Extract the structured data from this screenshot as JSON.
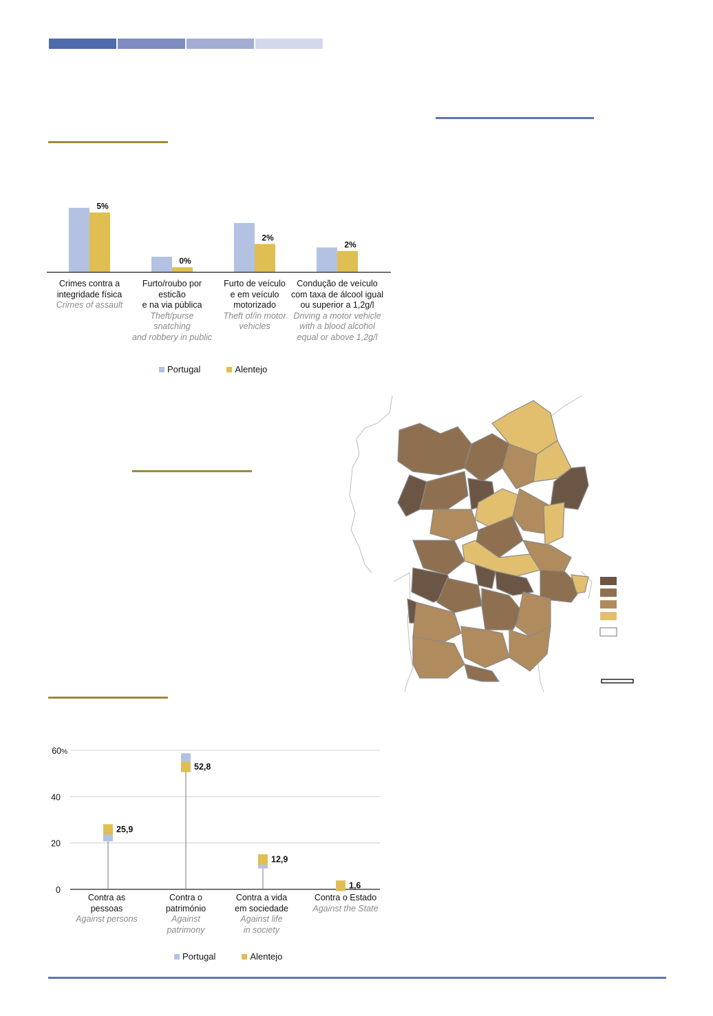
{
  "colors": {
    "portugal": "#b3c2e2",
    "alentejo": "#dfbf52",
    "header_band": [
      "#4f6aab",
      "#7e8dc0",
      "#a3acd2",
      "#d4d8ea"
    ],
    "rule_blue": "#5f74b5",
    "rule_gold": "#9c8b3f",
    "map_classes": [
      "#6b5645",
      "#8e7050",
      "#b08b5e",
      "#e2bf6e",
      "#ffffff"
    ]
  },
  "chart_top": {
    "type": "bar",
    "categories": [
      {
        "pt": [
          "Crimes contra a",
          "integridade física"
        ],
        "en": [
          "Crimes of assault"
        ]
      },
      {
        "pt": [
          "Furto/roubo por",
          "esticão",
          "e na via pública"
        ],
        "en": [
          "Theft/purse",
          "snatching",
          "and robbery in public"
        ]
      },
      {
        "pt": [
          "Furto de veículo",
          "e em veículo",
          "motorizado"
        ],
        "en": [
          "Theft of/in motor",
          "vehicles"
        ]
      },
      {
        "pt": [
          "Condução de veículo",
          "com taxa de álcool igual",
          "ou superior a 1,2g/l"
        ],
        "en": [
          "Driving a motor vehicle",
          "with a blood alcohol",
          "equal or above 1,2g/l"
        ]
      }
    ],
    "series": [
      {
        "name": "Portugal",
        "values": [
          5.5,
          1.3,
          4.2,
          2.1
        ]
      },
      {
        "name": "Alentejo",
        "values": [
          5.1,
          0.4,
          2.4,
          1.8
        ]
      }
    ],
    "data_labels": [
      "5%",
      "0%",
      "2%",
      "2%"
    ],
    "ylim": [
      0,
      6.5
    ],
    "legend": [
      "Portugal",
      "Alentejo"
    ]
  },
  "chart_bottom": {
    "type": "dot",
    "categories": [
      {
        "pt": [
          "Contra as",
          "pessoas"
        ],
        "en": [
          "Against persons"
        ]
      },
      {
        "pt": [
          "Contra o",
          "património"
        ],
        "en": [
          "Against",
          "patrimony"
        ]
      },
      {
        "pt": [
          "Contra a vida",
          "em sociedade"
        ],
        "en": [
          "Against life",
          "in society"
        ]
      },
      {
        "pt": [
          "Contra o Estado"
        ],
        "en": [
          "Against the State"
        ]
      }
    ],
    "series": [
      {
        "name": "Portugal",
        "values": [
          22.5,
          56.5,
          10.8,
          1.0
        ]
      },
      {
        "name": "Alentejo",
        "values": [
          25.9,
          52.8,
          12.9,
          1.6
        ]
      }
    ],
    "data_labels": [
      "25,9",
      "52,8",
      "12,9",
      "1,6"
    ],
    "yticks": [
      "0",
      "20",
      "40",
      "60"
    ],
    "ytick_values": [
      0,
      20,
      40,
      60
    ],
    "ytick_unit": "%",
    "ylim": [
      0,
      60
    ],
    "grid": true,
    "legend": [
      "Portugal",
      "Alentejo"
    ]
  },
  "chart_data": [
    {
      "type": "bar",
      "categories": [
        "Crimes contra a integridade física",
        "Furto/roubo por esticão e na via pública",
        "Furto de veículo e em veículo motorizado",
        "Condução de veículo com taxa de álcool igual ou superior a 1,2g/l"
      ],
      "series": [
        {
          "name": "Portugal",
          "values": [
            5.5,
            1.3,
            4.2,
            2.1
          ]
        },
        {
          "name": "Alentejo",
          "values": [
            5.1,
            0.4,
            2.4,
            1.8
          ]
        }
      ],
      "ylim": [
        0,
        6.5
      ],
      "legend": "bottom"
    },
    {
      "type": "scatter",
      "categories": [
        "Contra as pessoas",
        "Contra o património",
        "Contra a vida em sociedade",
        "Contra o Estado"
      ],
      "series": [
        {
          "name": "Portugal",
          "values": [
            22.5,
            56.5,
            10.8,
            1.0
          ]
        },
        {
          "name": "Alentejo",
          "values": [
            25.9,
            52.8,
            12.9,
            1.6
          ]
        }
      ],
      "ylim": [
        0,
        60
      ],
      "grid": true,
      "legend": "bottom"
    }
  ]
}
